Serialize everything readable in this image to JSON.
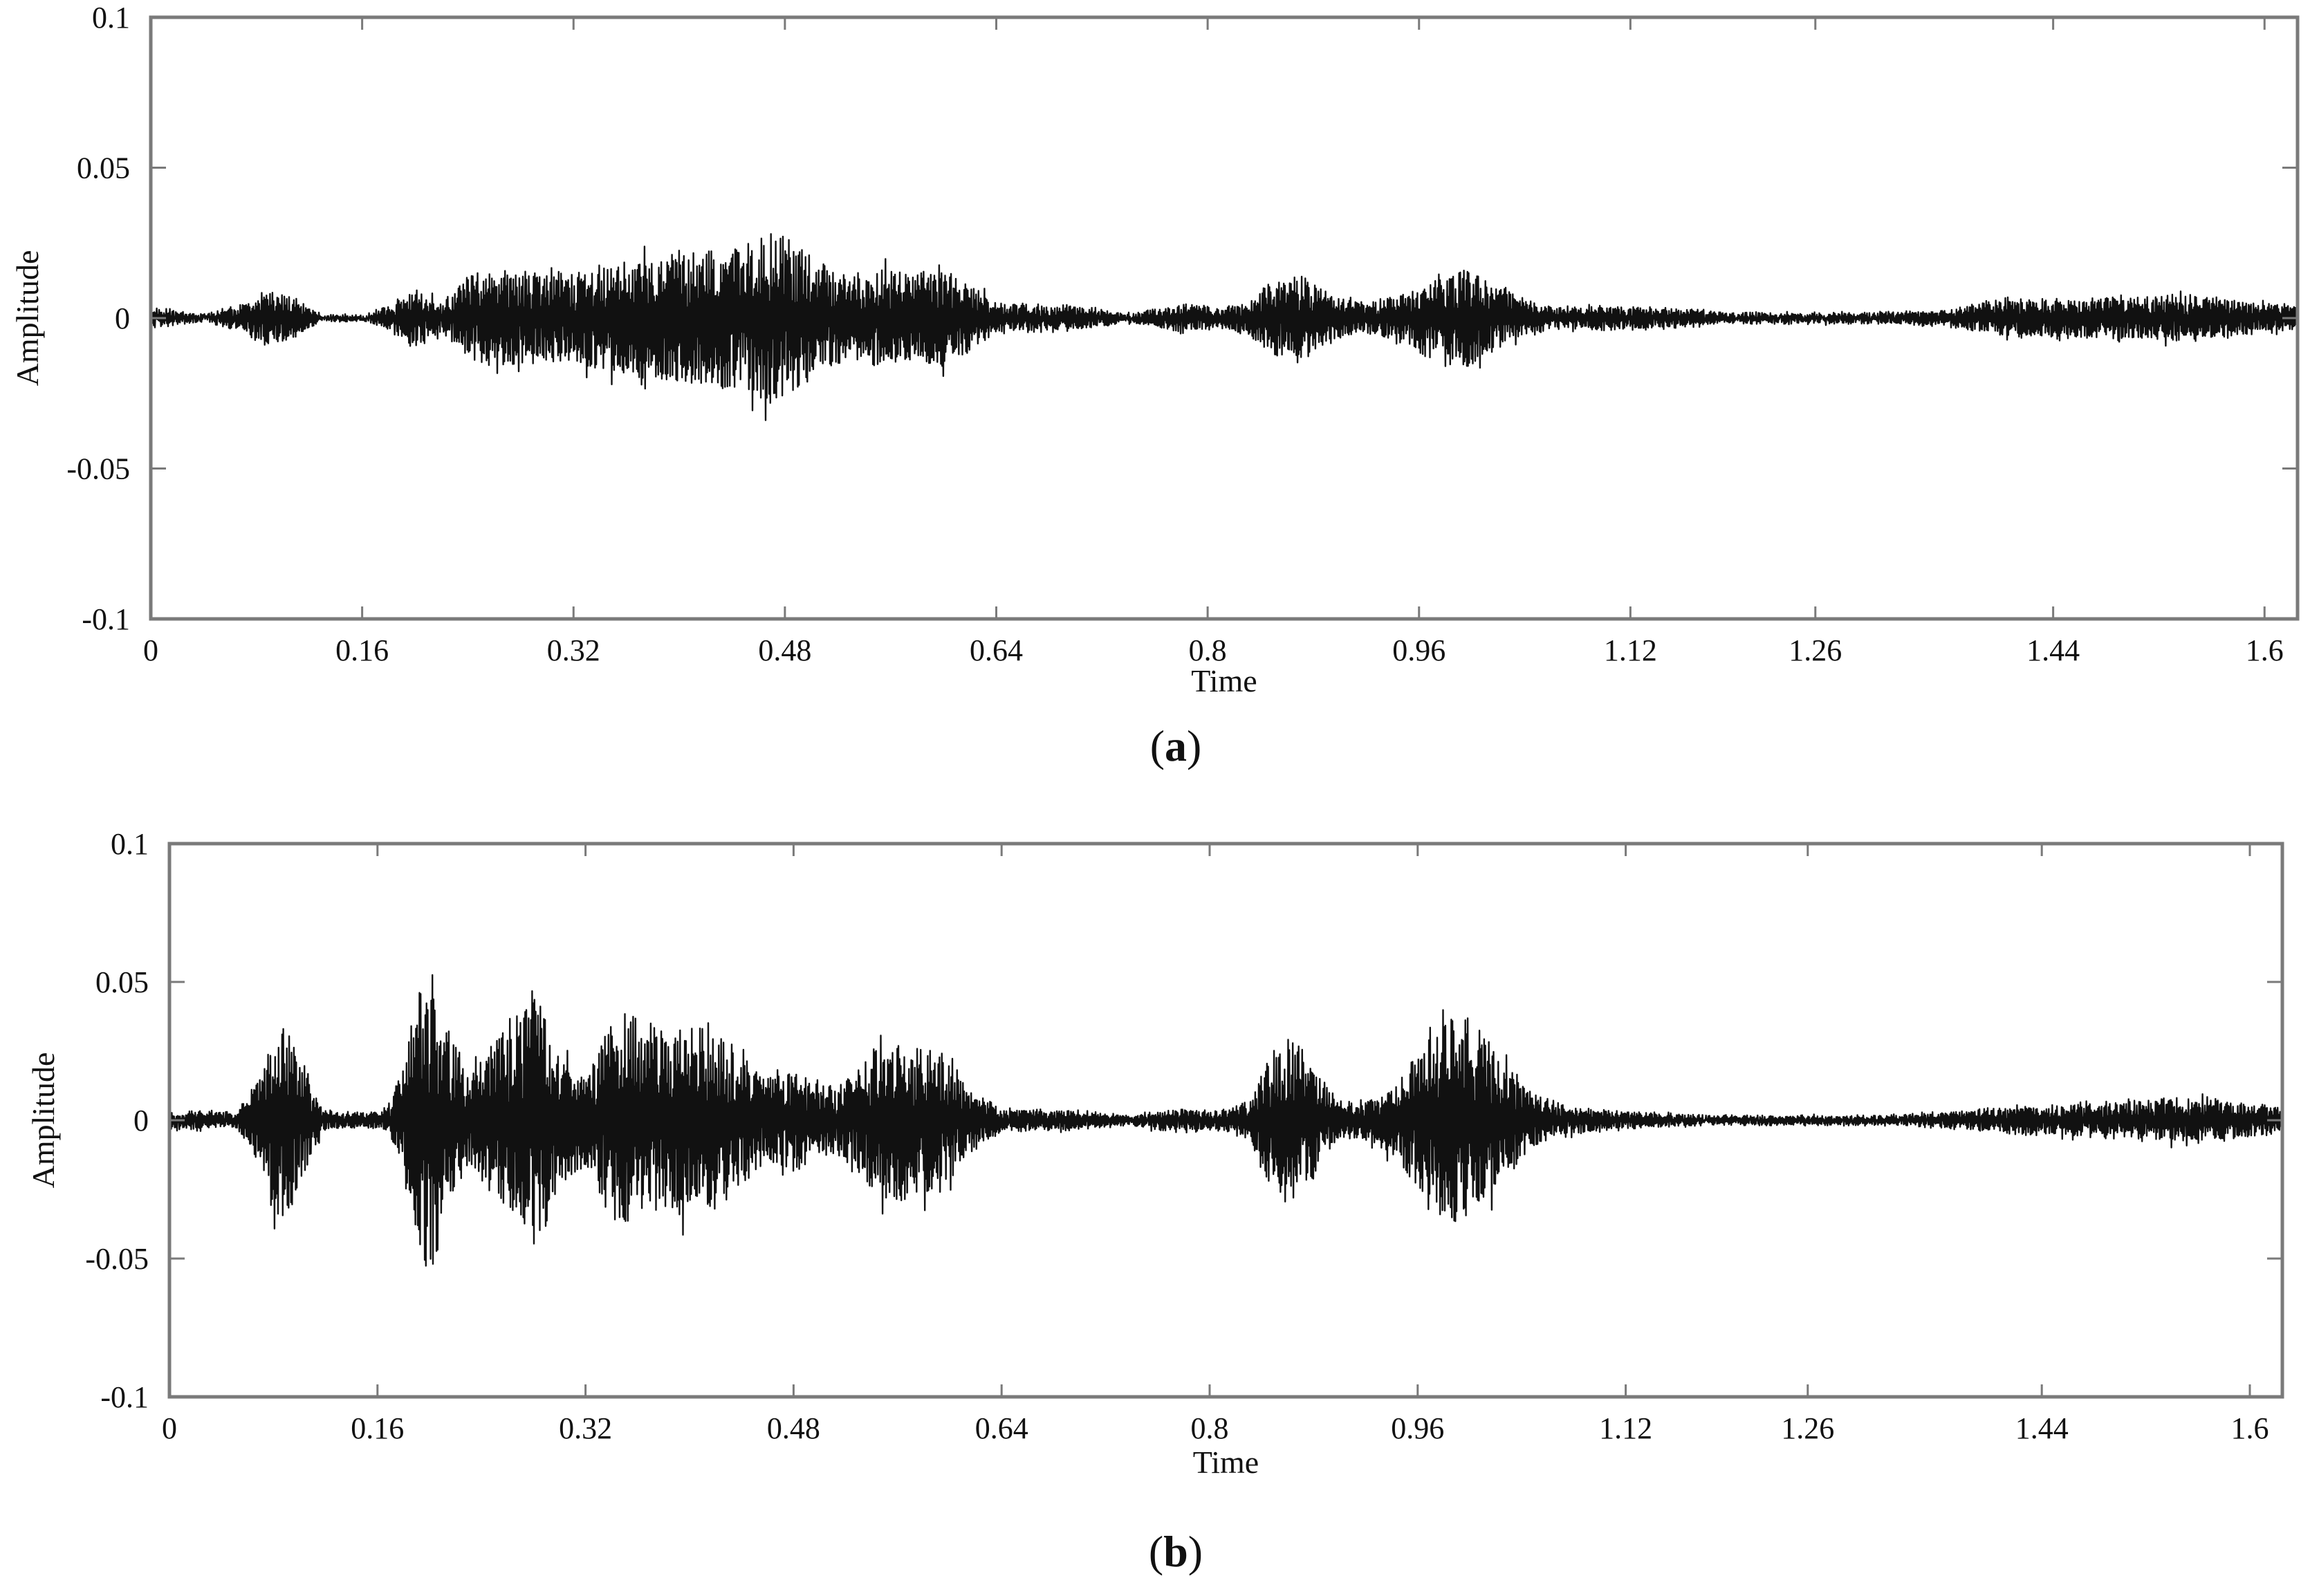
{
  "chart_data": [
    {
      "id": "a",
      "type": "line",
      "caption_letter": "a",
      "xlabel": "Time",
      "ylabel": "Amplitude",
      "xlim": [
        0,
        1.625
      ],
      "ylim": [
        -0.1,
        0.1
      ],
      "xticks": [
        0,
        0.16,
        0.32,
        0.48,
        0.64,
        0.8,
        0.96,
        1.12,
        1.26,
        1.44,
        1.6
      ],
      "xtick_labels": [
        "0",
        "0.16",
        "0.32",
        "0.48",
        "0.64",
        "0.8",
        "0.96",
        "1.12",
        "1.26",
        "1.44",
        "1.6"
      ],
      "yticks": [
        -0.1,
        -0.05,
        0,
        0.05,
        0.1
      ],
      "ytick_labels": [
        "-0.1",
        "-0.05",
        "0",
        "0.05",
        "0.1"
      ],
      "grid": false,
      "series": [
        {
          "signal": "speech waveform",
          "envelope_points": [
            [
              0,
              0.004
            ],
            [
              0.02,
              0.003
            ],
            [
              0.04,
              0.001
            ],
            [
              0.07,
              0.006
            ],
            [
              0.09,
              0.012
            ],
            [
              0.11,
              0.008
            ],
            [
              0.13,
              0.001
            ],
            [
              0.16,
              0.001
            ],
            [
              0.18,
              0.005
            ],
            [
              0.2,
              0.012
            ],
            [
              0.22,
              0.006
            ],
            [
              0.24,
              0.018
            ],
            [
              0.26,
              0.02
            ],
            [
              0.28,
              0.02
            ],
            [
              0.3,
              0.018
            ],
            [
              0.33,
              0.02
            ],
            [
              0.36,
              0.024
            ],
            [
              0.39,
              0.026
            ],
            [
              0.42,
              0.028
            ],
            [
              0.45,
              0.03
            ],
            [
              0.47,
              0.036
            ],
            [
              0.49,
              0.03
            ],
            [
              0.52,
              0.018
            ],
            [
              0.54,
              0.02
            ],
            [
              0.56,
              0.02
            ],
            [
              0.58,
              0.018
            ],
            [
              0.6,
              0.02
            ],
            [
              0.62,
              0.014
            ],
            [
              0.64,
              0.006
            ],
            [
              0.7,
              0.005
            ],
            [
              0.74,
              0.002
            ],
            [
              0.76,
              0.004
            ],
            [
              0.78,
              0.006
            ],
            [
              0.81,
              0.004
            ],
            [
              0.83,
              0.006
            ],
            [
              0.85,
              0.016
            ],
            [
              0.87,
              0.018
            ],
            [
              0.89,
              0.01
            ],
            [
              0.92,
              0.006
            ],
            [
              0.95,
              0.012
            ],
            [
              0.98,
              0.02
            ],
            [
              1.0,
              0.02
            ],
            [
              1.02,
              0.012
            ],
            [
              1.06,
              0.004
            ],
            [
              1.1,
              0.005
            ],
            [
              1.15,
              0.004
            ],
            [
              1.2,
              0.002
            ],
            [
              1.26,
              0.002
            ],
            [
              1.3,
              0.002
            ],
            [
              1.36,
              0.003
            ],
            [
              1.4,
              0.008
            ],
            [
              1.44,
              0.008
            ],
            [
              1.48,
              0.008
            ],
            [
              1.53,
              0.01
            ],
            [
              1.57,
              0.008
            ],
            [
              1.6,
              0.006
            ],
            [
              1.625,
              0.005
            ]
          ]
        }
      ]
    },
    {
      "id": "b",
      "type": "line",
      "caption_letter": "b",
      "xlabel": "Time",
      "ylabel": "Amplitude",
      "xlim": [
        0,
        1.625
      ],
      "ylim": [
        -0.1,
        0.1
      ],
      "xticks": [
        0,
        0.16,
        0.32,
        0.48,
        0.64,
        0.8,
        0.96,
        1.12,
        1.26,
        1.44,
        1.6
      ],
      "xtick_labels": [
        "0",
        "0.16",
        "0.32",
        "0.48",
        "0.64",
        "0.8",
        "0.96",
        "1.12",
        "1.26",
        "1.44",
        "1.6"
      ],
      "yticks": [
        -0.1,
        -0.05,
        0,
        0.05,
        0.1
      ],
      "ytick_labels": [
        "-0.1",
        "-0.05",
        "0",
        "0.05",
        "0.1"
      ],
      "grid": false,
      "series": [
        {
          "signal": "speech waveform",
          "envelope_points": [
            [
              0,
              0.004
            ],
            [
              0.03,
              0.004
            ],
            [
              0.05,
              0.003
            ],
            [
              0.07,
              0.02
            ],
            [
              0.08,
              0.04
            ],
            [
              0.09,
              0.045
            ],
            [
              0.1,
              0.03
            ],
            [
              0.12,
              0.004
            ],
            [
              0.15,
              0.003
            ],
            [
              0.17,
              0.006
            ],
            [
              0.19,
              0.05
            ],
            [
              0.2,
              0.075
            ],
            [
              0.21,
              0.05
            ],
            [
              0.23,
              0.02
            ],
            [
              0.25,
              0.035
            ],
            [
              0.27,
              0.05
            ],
            [
              0.28,
              0.065
            ],
            [
              0.3,
              0.03
            ],
            [
              0.32,
              0.02
            ],
            [
              0.34,
              0.045
            ],
            [
              0.36,
              0.05
            ],
            [
              0.38,
              0.04
            ],
            [
              0.4,
              0.045
            ],
            [
              0.42,
              0.04
            ],
            [
              0.44,
              0.03
            ],
            [
              0.46,
              0.02
            ],
            [
              0.48,
              0.025
            ],
            [
              0.5,
              0.015
            ],
            [
              0.52,
              0.018
            ],
            [
              0.55,
              0.038
            ],
            [
              0.57,
              0.035
            ],
            [
              0.6,
              0.03
            ],
            [
              0.62,
              0.012
            ],
            [
              0.64,
              0.005
            ],
            [
              0.7,
              0.004
            ],
            [
              0.74,
              0.002
            ],
            [
              0.77,
              0.005
            ],
            [
              0.8,
              0.004
            ],
            [
              0.83,
              0.008
            ],
            [
              0.85,
              0.034
            ],
            [
              0.86,
              0.04
            ],
            [
              0.88,
              0.025
            ],
            [
              0.9,
              0.008
            ],
            [
              0.93,
              0.01
            ],
            [
              0.96,
              0.03
            ],
            [
              0.98,
              0.045
            ],
            [
              1.0,
              0.048
            ],
            [
              1.02,
              0.03
            ],
            [
              1.05,
              0.012
            ],
            [
              1.08,
              0.006
            ],
            [
              1.12,
              0.004
            ],
            [
              1.18,
              0.002
            ],
            [
              1.26,
              0.002
            ],
            [
              1.32,
              0.002
            ],
            [
              1.38,
              0.004
            ],
            [
              1.42,
              0.006
            ],
            [
              1.46,
              0.007
            ],
            [
              1.5,
              0.008
            ],
            [
              1.55,
              0.01
            ],
            [
              1.59,
              0.008
            ],
            [
              1.625,
              0.006
            ]
          ]
        }
      ]
    }
  ]
}
